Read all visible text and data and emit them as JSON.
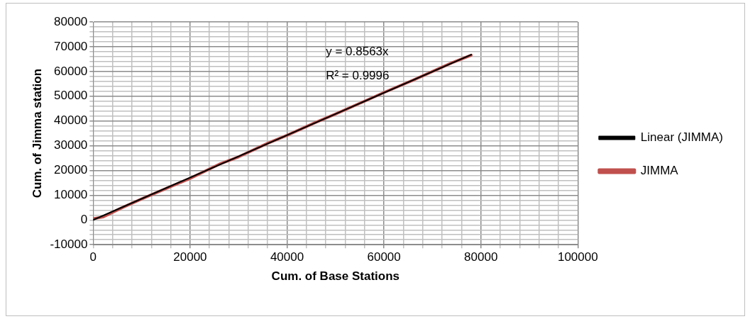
{
  "chart_data": {
    "type": "line",
    "xlabel": "Cum. of Base Stations",
    "ylabel": "Cum. of Jimma station",
    "xlim": [
      0,
      100000
    ],
    "ylim": [
      -10000,
      80000
    ],
    "xticks": [
      0,
      {
        "value": 4000,
        "label": null
      },
      {
        "value": 8000,
        "label": null
      },
      {
        "value": 12000,
        "label": null
      },
      {
        "value": 16000,
        "label": null
      },
      20000,
      {
        "value": 24000,
        "label": null
      },
      {
        "value": 28000,
        "label": null
      },
      {
        "value": 32000,
        "label": null
      },
      {
        "value": 36000,
        "label": null
      },
      40000,
      {
        "value": 44000,
        "label": null
      },
      {
        "value": 48000,
        "label": null
      },
      {
        "value": 52000,
        "label": null
      },
      {
        "value": 56000,
        "label": null
      },
      60000,
      {
        "value": 64000,
        "label": null
      },
      {
        "value": 68000,
        "label": null
      },
      {
        "value": 72000,
        "label": null
      },
      {
        "value": 76000,
        "label": null
      },
      80000,
      {
        "value": 84000,
        "label": null
      },
      {
        "value": 88000,
        "label": null
      },
      {
        "value": 92000,
        "label": null
      },
      {
        "value": 96000,
        "label": null
      },
      100000
    ],
    "yticks": [
      -10000,
      {
        "value": -8000,
        "label": null
      },
      {
        "value": -6000,
        "label": null
      },
      {
        "value": -4000,
        "label": null
      },
      {
        "value": -2000,
        "label": null
      },
      0,
      {
        "value": 2000,
        "label": null
      },
      {
        "value": 4000,
        "label": null
      },
      {
        "value": 6000,
        "label": null
      },
      {
        "value": 8000,
        "label": null
      },
      10000,
      {
        "value": 12000,
        "label": null
      },
      {
        "value": 14000,
        "label": null
      },
      {
        "value": 16000,
        "label": null
      },
      {
        "value": 18000,
        "label": null
      },
      20000,
      {
        "value": 22000,
        "label": null
      },
      {
        "value": 24000,
        "label": null
      },
      {
        "value": 26000,
        "label": null
      },
      {
        "value": 28000,
        "label": null
      },
      30000,
      {
        "value": 32000,
        "label": null
      },
      {
        "value": 34000,
        "label": null
      },
      {
        "value": 36000,
        "label": null
      },
      {
        "value": 38000,
        "label": null
      },
      40000,
      {
        "value": 42000,
        "label": null
      },
      {
        "value": 44000,
        "label": null
      },
      {
        "value": 46000,
        "label": null
      },
      {
        "value": 48000,
        "label": null
      },
      50000,
      {
        "value": 52000,
        "label": null
      },
      {
        "value": 54000,
        "label": null
      },
      {
        "value": 56000,
        "label": null
      },
      {
        "value": 58000,
        "label": null
      },
      60000,
      {
        "value": 62000,
        "label": null
      },
      {
        "value": 64000,
        "label": null
      },
      {
        "value": 66000,
        "label": null
      },
      {
        "value": 68000,
        "label": null
      },
      70000,
      {
        "value": 72000,
        "label": null
      },
      {
        "value": 74000,
        "label": null
      },
      {
        "value": 76000,
        "label": null
      },
      {
        "value": 78000,
        "label": null
      },
      80000
    ],
    "grid": true,
    "legend": "right",
    "marker": "none",
    "line_style": "solid",
    "series": [
      {
        "name": "JIMMA",
        "color": "#c0504d",
        "x": [
          0,
          2000,
          6000,
          10000,
          16000,
          20000,
          26000,
          30000,
          36000,
          40000,
          46000,
          50000,
          56000,
          60000,
          66000,
          70000,
          74000,
          78000
        ],
        "values": [
          500,
          1200,
          5000,
          8500,
          13500,
          16800,
          22500,
          25500,
          31000,
          34200,
          39500,
          42800,
          48000,
          51500,
          56500,
          60000,
          63500,
          66600
        ]
      },
      {
        "name": "Linear (JIMMA)",
        "color": "#000000",
        "x": [
          0,
          78000
        ],
        "values": [
          0,
          66800
        ]
      }
    ],
    "annotations": [
      "y = 0.8563x",
      "R² = 0.9996"
    ]
  }
}
